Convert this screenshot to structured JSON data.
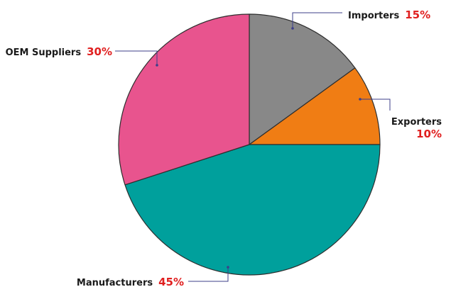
{
  "chart_data": {
    "type": "pie",
    "slices": [
      {
        "label": "Importers",
        "value": 15,
        "value_label": "15%",
        "color": "#888888"
      },
      {
        "label": "Exporters",
        "value": 10,
        "value_label": "10%",
        "color": "#f07d14"
      },
      {
        "label": "Manufacturers",
        "value": 45,
        "value_label": "45%",
        "color": "#00a09c"
      },
      {
        "label": "OEM Suppliers",
        "value": 30,
        "value_label": "30%",
        "color": "#e8548e"
      }
    ],
    "start": "12 o'clock",
    "direction": "clockwise",
    "legend": "none",
    "label_color": "#1a1a1a",
    "value_label_color": "#e02020",
    "leader_line_color": "#3d3f8a",
    "slice_border_color": "#2e2e2e"
  }
}
